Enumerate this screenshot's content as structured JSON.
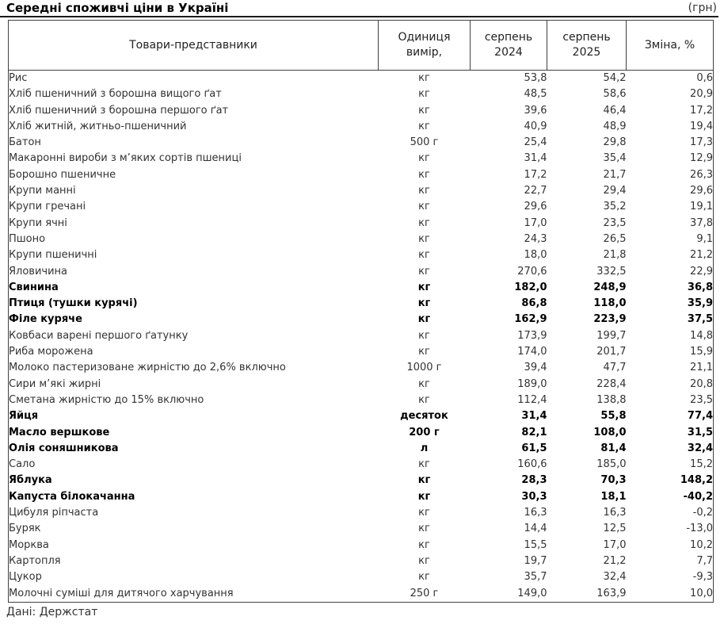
{
  "title": "Середні споживчі ціни в Україні",
  "currency_note": "(грн)",
  "source": "Дані: Держстат",
  "table": {
    "headers": {
      "product": "Товари-представники",
      "unit": "Одиниця\nвимір,",
      "aug2024": "серпень\n2024",
      "aug2025": "серпень\n2025",
      "change": "Зміна, %"
    },
    "rows": [
      {
        "product": "Рис",
        "unit": "кг",
        "aug2024": "53,8",
        "aug2025": "54,2",
        "change": "0,6",
        "bold": false
      },
      {
        "product": "Хліб пшеничний з борошна вищого ґат",
        "unit": "кг",
        "aug2024": "48,5",
        "aug2025": "58,6",
        "change": "20,9",
        "bold": false
      },
      {
        "product": "Хліб пшеничний з борошна першого ґат",
        "unit": "кг",
        "aug2024": "39,6",
        "aug2025": "46,4",
        "change": "17,2",
        "bold": false
      },
      {
        "product": "Хліб житній, житньо-пшеничний",
        "unit": "кг",
        "aug2024": "40,9",
        "aug2025": "48,9",
        "change": "19,4",
        "bold": false
      },
      {
        "product": "Батон",
        "unit": "500 г",
        "aug2024": "25,4",
        "aug2025": "29,8",
        "change": "17,3",
        "bold": false
      },
      {
        "product": "Макаронні вироби з м’яких сортів пшениці",
        "unit": "кг",
        "aug2024": "31,4",
        "aug2025": "35,4",
        "change": "12,9",
        "bold": false
      },
      {
        "product": "Борошно пшеничне",
        "unit": "кг",
        "aug2024": "17,2",
        "aug2025": "21,7",
        "change": "26,3",
        "bold": false
      },
      {
        "product": "Крупи манні",
        "unit": "кг",
        "aug2024": "22,7",
        "aug2025": "29,4",
        "change": "29,6",
        "bold": false
      },
      {
        "product": "Крупи гречані",
        "unit": "кг",
        "aug2024": "29,6",
        "aug2025": "35,2",
        "change": "19,1",
        "bold": false
      },
      {
        "product": "Крупи ячні",
        "unit": "кг",
        "aug2024": "17,0",
        "aug2025": "23,5",
        "change": "37,8",
        "bold": false
      },
      {
        "product": "Пшоно",
        "unit": "кг",
        "aug2024": "24,3",
        "aug2025": "26,5",
        "change": "9,1",
        "bold": false
      },
      {
        "product": "Крупи пшеничні",
        "unit": "кг",
        "aug2024": "18,0",
        "aug2025": "21,8",
        "change": "21,2",
        "bold": false
      },
      {
        "product": "Яловичина",
        "unit": "кг",
        "aug2024": "270,6",
        "aug2025": "332,5",
        "change": "22,9",
        "bold": false
      },
      {
        "product": "Свинина",
        "unit": "кг",
        "aug2024": "182,0",
        "aug2025": "248,9",
        "change": "36,8",
        "bold": true
      },
      {
        "product": "Птиця (тушки курячі)",
        "unit": "кг",
        "aug2024": "86,8",
        "aug2025": "118,0",
        "change": "35,9",
        "bold": true
      },
      {
        "product": "Філе куряче",
        "unit": "кг",
        "aug2024": "162,9",
        "aug2025": "223,9",
        "change": "37,5",
        "bold": true
      },
      {
        "product": "Ковбаси варені першого ґатунку",
        "unit": "кг",
        "aug2024": "173,9",
        "aug2025": "199,7",
        "change": "14,8",
        "bold": false
      },
      {
        "product": "Риба морожена",
        "unit": "кг",
        "aug2024": "174,0",
        "aug2025": "201,7",
        "change": "15,9",
        "bold": false
      },
      {
        "product": "Молоко пастеризоване жирністю до 2,6% включно",
        "unit": "1000 г",
        "aug2024": "39,4",
        "aug2025": "47,7",
        "change": "21,1",
        "bold": false
      },
      {
        "product": "Сири м’які жирні",
        "unit": "кг",
        "aug2024": "189,0",
        "aug2025": "228,4",
        "change": "20,8",
        "bold": false
      },
      {
        "product": "Сметана жирністю до 15% включно",
        "unit": "кг",
        "aug2024": "112,4",
        "aug2025": "138,8",
        "change": "23,5",
        "bold": false
      },
      {
        "product": "Яйця",
        "unit": "десяток",
        "aug2024": "31,4",
        "aug2025": "55,8",
        "change": "77,4",
        "bold": true
      },
      {
        "product": "Масло вершкове",
        "unit": "200 г",
        "aug2024": "82,1",
        "aug2025": "108,0",
        "change": "31,5",
        "bold": true
      },
      {
        "product": "Олія соняшникова",
        "unit": "л",
        "aug2024": "61,5",
        "aug2025": "81,4",
        "change": "32,4",
        "bold": true
      },
      {
        "product": "Сало",
        "unit": "кг",
        "aug2024": "160,6",
        "aug2025": "185,0",
        "change": "15,2",
        "bold": false
      },
      {
        "product": "Яблука",
        "unit": "кг",
        "aug2024": "28,3",
        "aug2025": "70,3",
        "change": "148,2",
        "bold": true
      },
      {
        "product": "Капуста білокачанна",
        "unit": "кг",
        "aug2024": "30,3",
        "aug2025": "18,1",
        "change": "-40,2",
        "bold": true
      },
      {
        "product": "Цибуля ріпчаста",
        "unit": "кг",
        "aug2024": "16,3",
        "aug2025": "16,3",
        "change": "-0,2",
        "bold": false
      },
      {
        "product": "Буряк",
        "unit": "кг",
        "aug2024": "14,4",
        "aug2025": "12,5",
        "change": "-13,0",
        "bold": false
      },
      {
        "product": "Морква",
        "unit": "кг",
        "aug2024": "15,5",
        "aug2025": "17,0",
        "change": "10,2",
        "bold": false
      },
      {
        "product": "Картопля",
        "unit": "кг",
        "aug2024": "19,7",
        "aug2025": "21,2",
        "change": "7,7",
        "bold": false
      },
      {
        "product": "Цукор",
        "unit": "кг",
        "aug2024": "35,7",
        "aug2025": "32,4",
        "change": "-9,3",
        "bold": false
      },
      {
        "product": "Молочні суміші для дитячого харчування",
        "unit": "250 г",
        "aug2024": "149,0",
        "aug2025": "163,9",
        "change": "10,0",
        "bold": false
      }
    ]
  }
}
